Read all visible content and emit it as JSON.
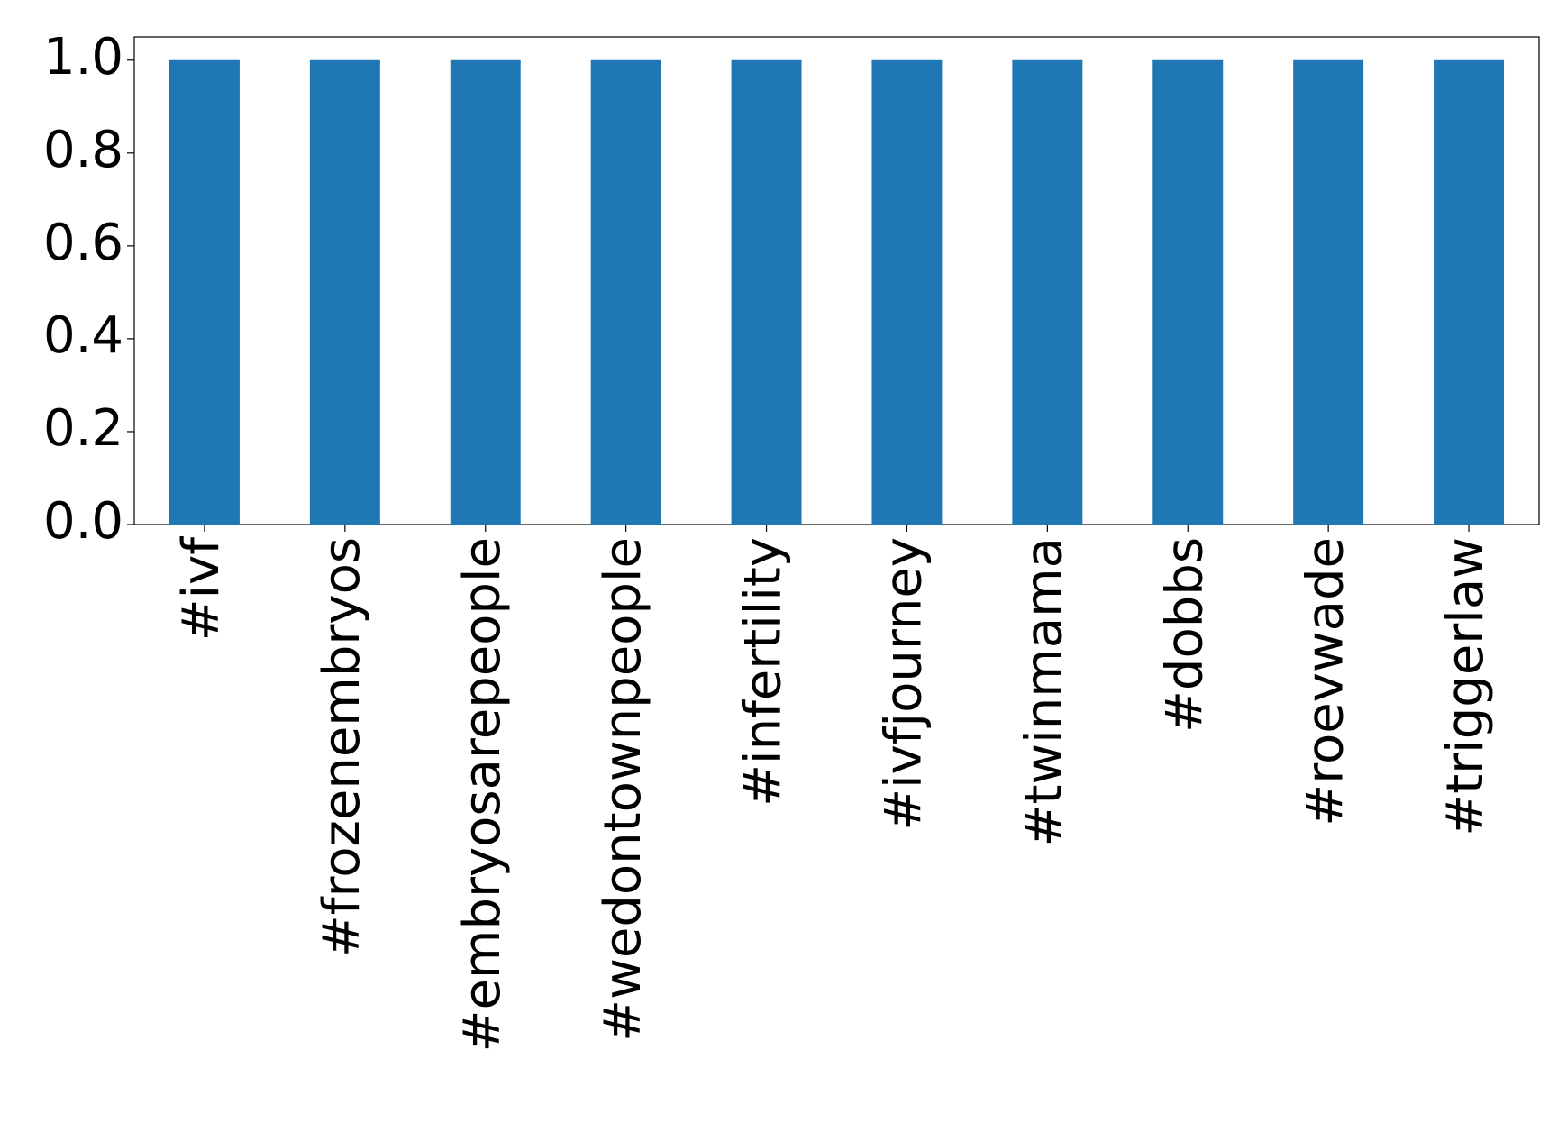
{
  "chart_data": {
    "type": "bar",
    "categories": [
      "#ivf",
      "#frozenembryos",
      "#embryosarepeople",
      "#wedontownpeople",
      "#infertility",
      "#ivfjourney",
      "#twinmama",
      "#dobbs",
      "#roevwade",
      "#triggerlaw"
    ],
    "values": [
      1,
      1,
      1,
      1,
      1,
      1,
      1,
      1,
      1,
      1
    ],
    "color": "#1f77b4",
    "ylim": [
      0,
      1.05
    ],
    "yticks": [
      {
        "value": 0,
        "label": "0.0"
      },
      0.2,
      0.4,
      0.6,
      0.8,
      {
        "value": 1,
        "label": "1.0"
      }
    ]
  }
}
